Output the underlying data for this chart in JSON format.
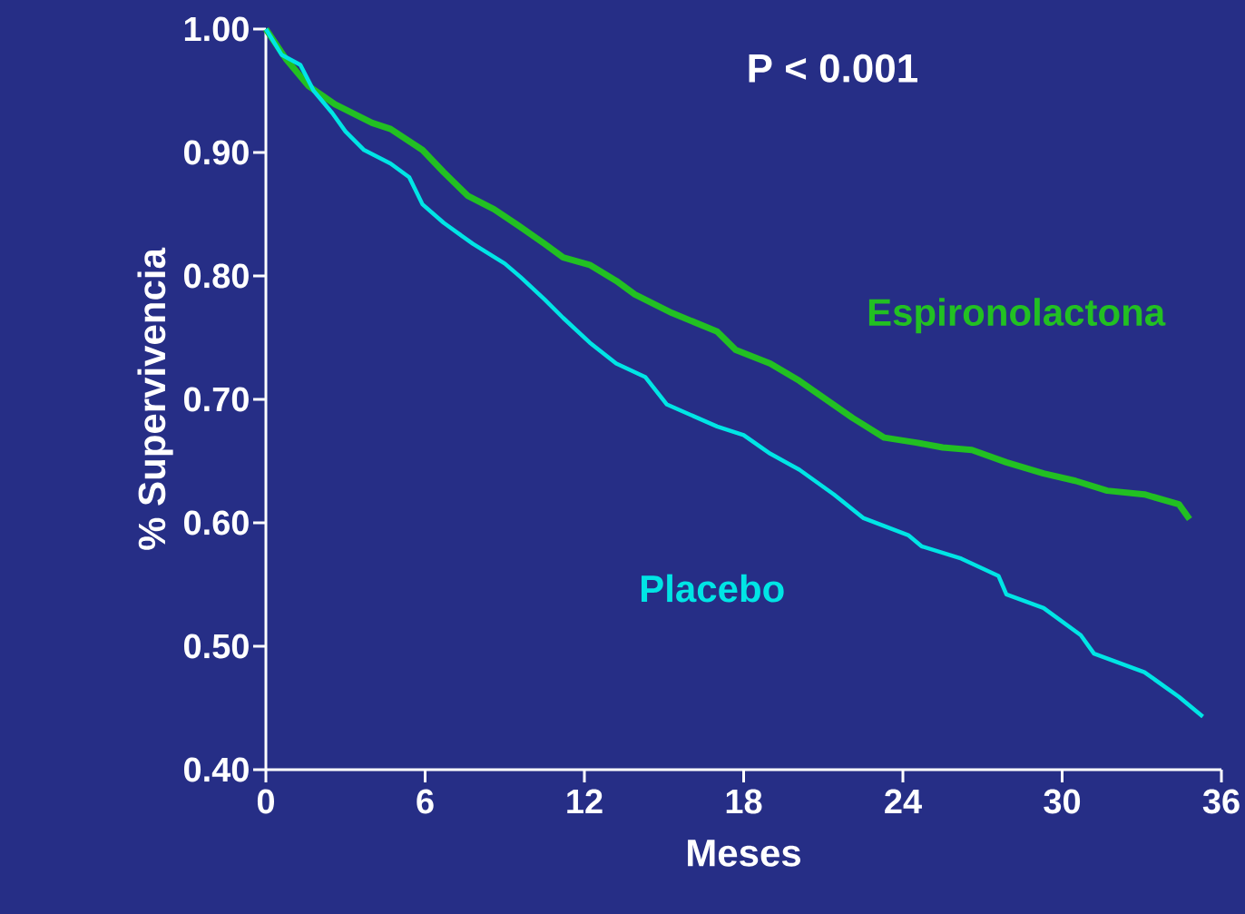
{
  "chart_data": {
    "type": "line",
    "xlabel": "Meses",
    "ylabel": "% Supervivencia",
    "annotations": [
      "P < 0.001"
    ],
    "xlim": [
      0,
      36
    ],
    "xticks": [
      0,
      6,
      12,
      18,
      24,
      30,
      36
    ],
    "ylim": [
      0.4,
      1.0
    ],
    "yticks": [
      {
        "value": 0.4,
        "label": "0.40"
      },
      {
        "value": 0.5,
        "label": "0.50"
      },
      {
        "value": 0.6,
        "label": "0.60"
      },
      {
        "value": 0.7,
        "label": "0.70"
      },
      {
        "value": 0.8,
        "label": "0.80"
      },
      {
        "value": 0.9,
        "label": "0.90"
      },
      {
        "value": 1.0,
        "label": "1.00"
      }
    ],
    "marker": "none",
    "line_style": "solid",
    "series": [
      {
        "name": "Espironolactona",
        "color": "#22c022",
        "x": [
          0,
          0.75,
          1.6,
          2.6,
          4.0,
          4.7,
          5.9,
          6.7,
          7.6,
          8.6,
          9.5,
          10.5,
          11.2,
          12.2,
          13.2,
          13.9,
          15.3,
          17.0,
          17.7,
          19.0,
          20.1,
          21.1,
          22.1,
          23.3,
          24.5,
          25.5,
          26.6,
          27.9,
          29.3,
          30.5,
          31.7,
          33.1,
          34.4,
          34.8
        ],
        "values": [
          1.0,
          0.976,
          0.954,
          0.939,
          0.924,
          0.919,
          0.902,
          0.884,
          0.865,
          0.854,
          0.841,
          0.826,
          0.815,
          0.809,
          0.796,
          0.785,
          0.77,
          0.755,
          0.74,
          0.729,
          0.715,
          0.7,
          0.685,
          0.669,
          0.665,
          0.661,
          0.659,
          0.649,
          0.64,
          0.634,
          0.626,
          0.623,
          0.615,
          0.603
        ]
      },
      {
        "name": "Placebo",
        "color": "#00e5e5",
        "x": [
          0,
          0.6,
          1.3,
          1.8,
          2.5,
          3.0,
          3.7,
          4.7,
          5.4,
          5.9,
          6.7,
          7.8,
          9.0,
          9.6,
          10.5,
          11.2,
          12.2,
          13.2,
          14.3,
          15.1,
          17.0,
          18.0,
          19.0,
          20.1,
          21.4,
          22.5,
          24.2,
          24.7,
          26.2,
          27.6,
          27.9,
          29.3,
          30.7,
          31.2,
          33.1,
          34.4,
          35.3
        ],
        "values": [
          1.0,
          0.979,
          0.971,
          0.95,
          0.932,
          0.917,
          0.902,
          0.891,
          0.88,
          0.858,
          0.843,
          0.826,
          0.81,
          0.799,
          0.781,
          0.766,
          0.746,
          0.729,
          0.718,
          0.696,
          0.678,
          0.671,
          0.656,
          0.643,
          0.623,
          0.604,
          0.59,
          0.581,
          0.571,
          0.557,
          0.542,
          0.531,
          0.509,
          0.494,
          0.479,
          0.459,
          0.443
        ]
      }
    ]
  }
}
